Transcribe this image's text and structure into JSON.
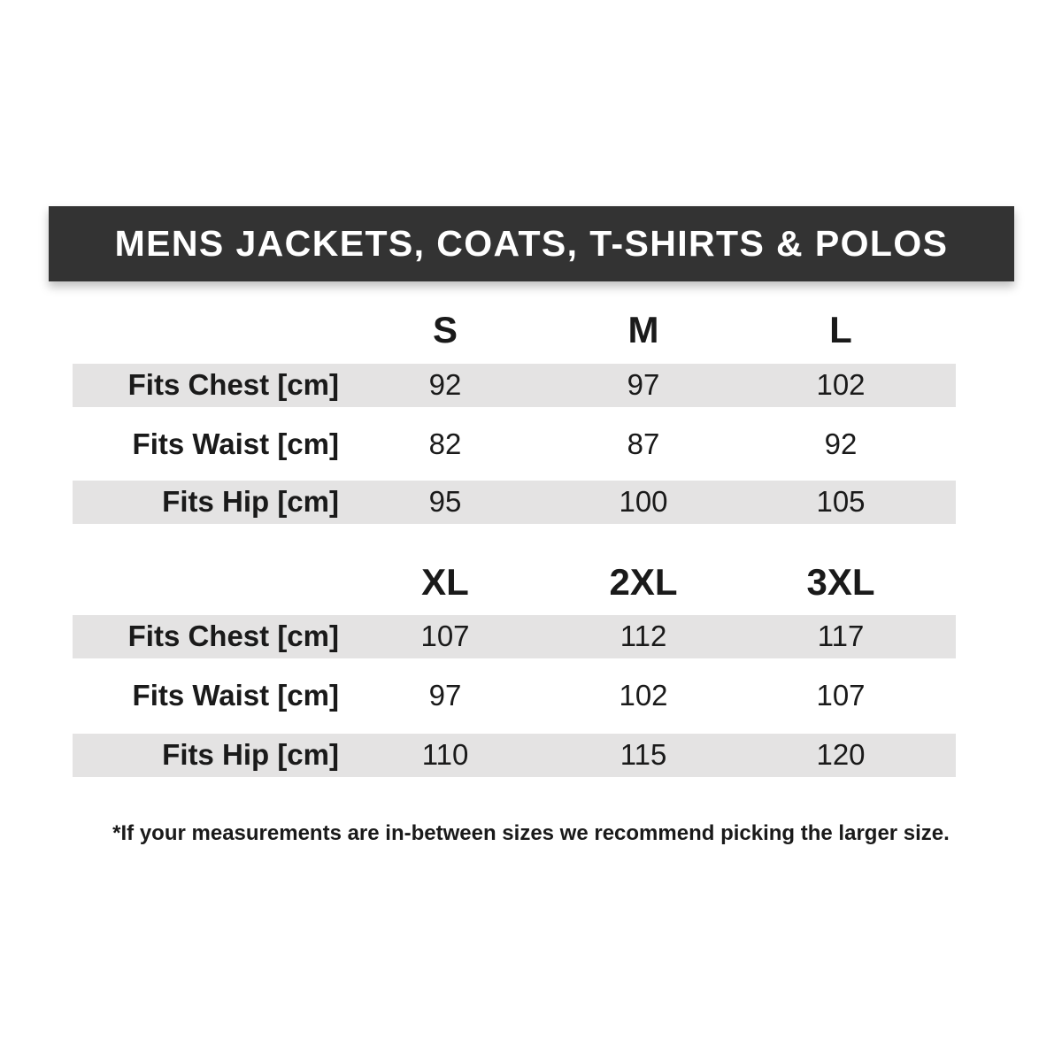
{
  "title": "MENS JACKETS, COATS, T-SHIRTS & POLOS",
  "tables": [
    {
      "sizes": [
        "S",
        "M",
        "L"
      ],
      "rows": [
        {
          "label": "Fits Chest [cm]",
          "values": [
            "92",
            "97",
            "102"
          ]
        },
        {
          "label": "Fits Waist [cm]",
          "values": [
            "82",
            "87",
            "92"
          ]
        },
        {
          "label": "Fits Hip [cm]",
          "values": [
            "95",
            "100",
            "105"
          ]
        }
      ]
    },
    {
      "sizes": [
        "XL",
        "2XL",
        "3XL"
      ],
      "rows": [
        {
          "label": "Fits Chest [cm]",
          "values": [
            "107",
            "112",
            "117"
          ]
        },
        {
          "label": "Fits Waist [cm]",
          "values": [
            "97",
            "102",
            "107"
          ]
        },
        {
          "label": "Fits Hip [cm]",
          "values": [
            "110",
            "115",
            "120"
          ]
        }
      ]
    }
  ],
  "footnote": "*If your measurements are in-between sizes we recommend picking the larger size.",
  "colors": {
    "banner": "#333333",
    "row_band": "#e4e3e3",
    "text": "#1a1a1a"
  }
}
